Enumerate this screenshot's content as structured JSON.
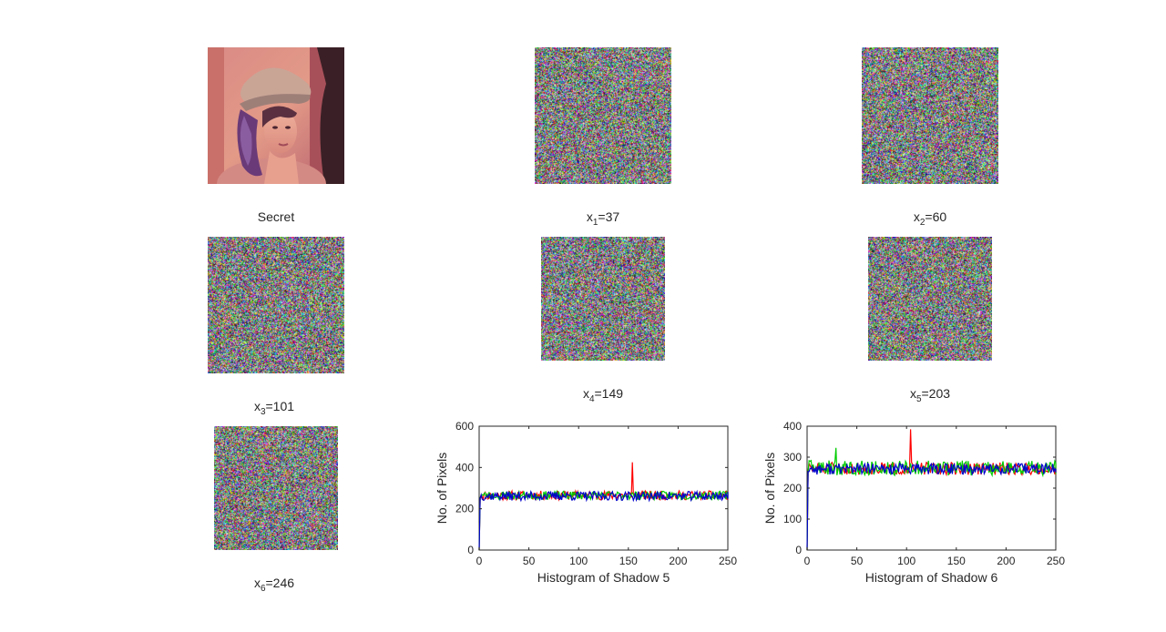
{
  "images": [
    {
      "id": "secret",
      "caption": "Secret"
    },
    {
      "id": "shadow1",
      "var": "x",
      "sub": "1",
      "value": "=37"
    },
    {
      "id": "shadow2",
      "var": "x",
      "sub": "2",
      "value": "=60"
    },
    {
      "id": "shadow3",
      "var": "x",
      "sub": "3",
      "value": "=101"
    },
    {
      "id": "shadow4",
      "var": "x",
      "sub": "4",
      "value": "=149"
    },
    {
      "id": "shadow5",
      "var": "x",
      "sub": "5",
      "value": "=203"
    },
    {
      "id": "shadow6",
      "var": "x",
      "sub": "6",
      "value": "=246"
    }
  ],
  "chart_data": [
    {
      "type": "line",
      "title": "",
      "xlabel": "Histogram of Shadow 5",
      "ylabel": "No. of Pixels",
      "xlim": [
        0,
        250
      ],
      "ylim": [
        0,
        600
      ],
      "xticks": [
        0,
        50,
        100,
        150,
        200,
        250
      ],
      "yticks": [
        0,
        200,
        400,
        600
      ],
      "grid": false,
      "series": [
        {
          "color": "#ff0000",
          "baseline": 265,
          "noise": 22,
          "spike_x": 154,
          "spike_y": 425,
          "seed": 11
        },
        {
          "color": "#00cc00",
          "baseline": 265,
          "noise": 20,
          "seed": 23
        },
        {
          "color": "#0000cc",
          "baseline": 262,
          "noise": 22,
          "seed": 37
        }
      ],
      "first_values": [
        0,
        0,
        0
      ]
    },
    {
      "type": "line",
      "title": "",
      "xlabel": "Histogram of Shadow 6",
      "ylabel": "No. of Pixels",
      "xlim": [
        0,
        250
      ],
      "ylim": [
        0,
        400
      ],
      "xticks": [
        0,
        50,
        100,
        150,
        200,
        250
      ],
      "yticks": [
        0,
        100,
        200,
        300,
        400
      ],
      "grid": false,
      "series": [
        {
          "color": "#ff0000",
          "baseline": 263,
          "noise": 20,
          "spike_x": 104,
          "spike_y": 390,
          "seed": 51
        },
        {
          "color": "#00cc00",
          "baseline": 265,
          "noise": 24,
          "spike_x": 29,
          "spike_y": 330,
          "seed": 63
        },
        {
          "color": "#0000cc",
          "baseline": 262,
          "noise": 18,
          "seed": 77
        }
      ],
      "first_values": [
        0,
        0,
        0
      ]
    }
  ]
}
